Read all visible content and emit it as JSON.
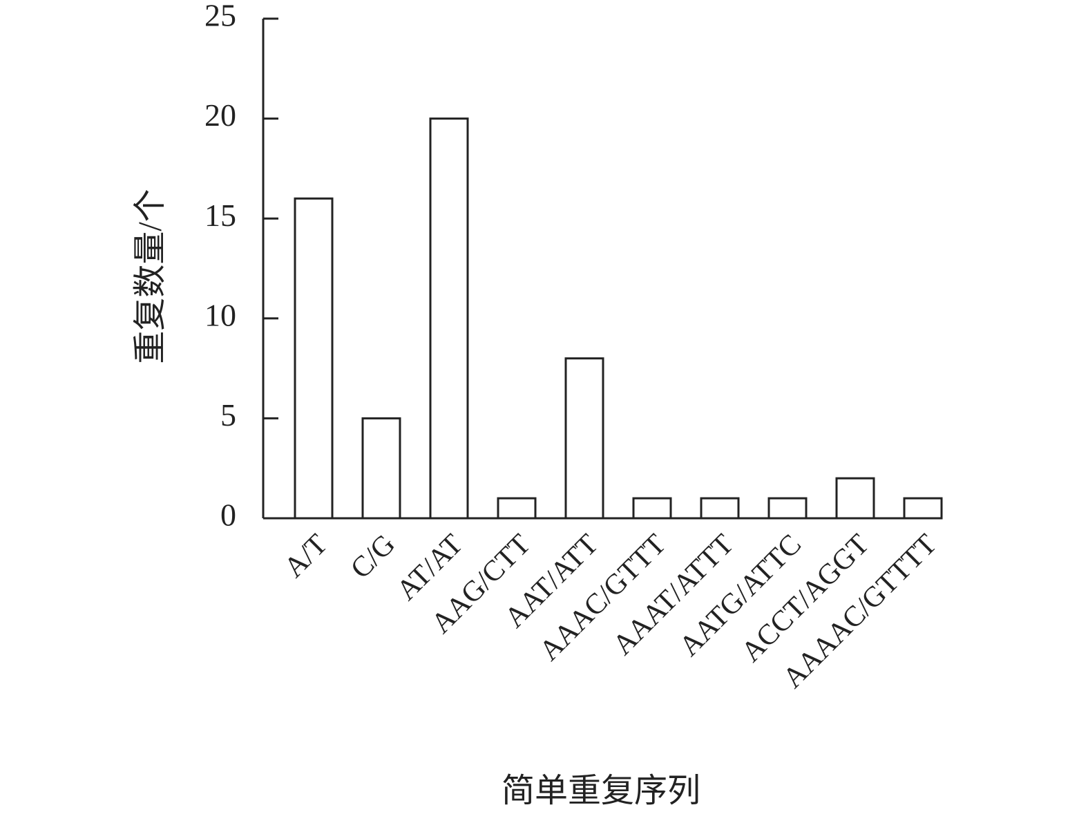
{
  "chart_data": {
    "type": "bar",
    "x_label": "简单重复序列",
    "y_label": "重复数量/个",
    "categories": [
      "A/T",
      "C/G",
      "AT/AT",
      "AAG/CTT",
      "AAT/ATT",
      "AAAC/GTTT",
      "AAAT/ATTT",
      "AATG/ATTC",
      "ACCT/AGGT",
      "AAAAC/GTTTT"
    ],
    "values": [
      16,
      5,
      20,
      1,
      8,
      1,
      1,
      1,
      2,
      1
    ],
    "color": "#ffffff",
    "ylim": [
      0,
      25
    ],
    "yticks": [
      0,
      5,
      10,
      15,
      20,
      25
    ],
    "grid": false
  }
}
